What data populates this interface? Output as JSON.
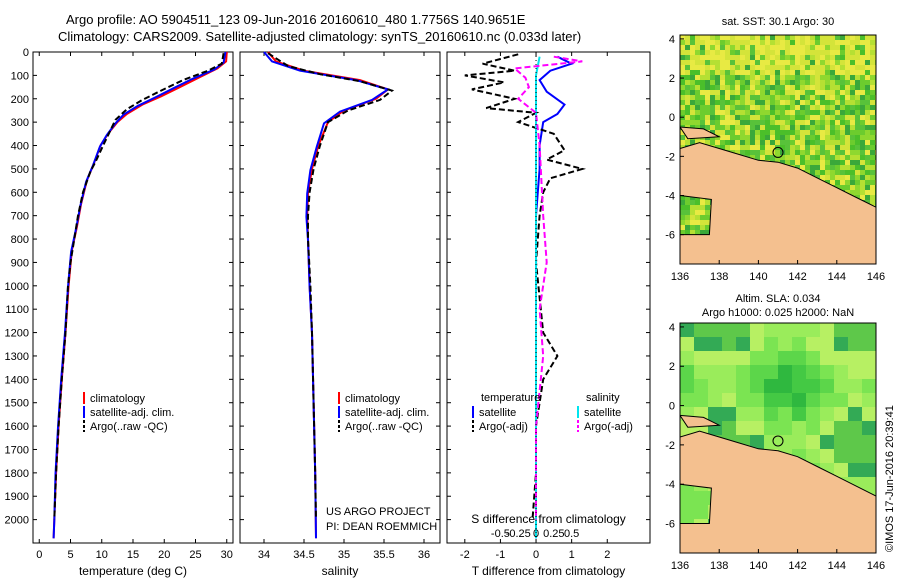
{
  "header": {
    "line1": "Argo profile: AO 5904511_123 09-Jun-2016 20160610_480 1.7756S 140.9651E",
    "line2": "Climatology: CARS2009. Satellite-adjusted climatology: synTS_20160610.nc (0.033d later)"
  },
  "credit": "©IMOS 17-Jun-2016 20:39:41",
  "colors": {
    "climatology": "#ff0000",
    "satellite": "#0000ff",
    "argo": "#000000",
    "sal_satellite": "#00e5ee",
    "sal_argo": "#ff00ff",
    "land": "#f4c08f",
    "sst_ocean": "#66cc33",
    "sla_ocean": "#44d84a"
  },
  "chart_data": [
    {
      "type": "line",
      "id": "temperature",
      "xlabel": "temperature (deg C)",
      "xlim": [
        -1,
        31
      ],
      "ylim": [
        0,
        2100
      ],
      "xticks": [
        0,
        5,
        10,
        15,
        20,
        25,
        30
      ],
      "yticks": [
        0,
        100,
        200,
        300,
        400,
        500,
        600,
        700,
        800,
        900,
        1000,
        1100,
        1200,
        1300,
        1400,
        1500,
        1600,
        1700,
        1800,
        1900,
        2000
      ],
      "legend": [
        "climatology",
        "satellite-adj. clim.",
        "Argo(..raw -QC)"
      ],
      "series": [
        {
          "name": "climatology",
          "style": "solid",
          "color": "#ff0000",
          "points": [
            [
              30.0,
              0
            ],
            [
              29.9,
              40
            ],
            [
              28.5,
              70
            ],
            [
              25.5,
              110
            ],
            [
              22.5,
              150
            ],
            [
              19.5,
              190
            ],
            [
              16.5,
              225
            ],
            [
              14.0,
              265
            ],
            [
              12.5,
              300
            ],
            [
              11.0,
              350
            ],
            [
              9.8,
              400
            ],
            [
              8.7,
              480
            ],
            [
              7.6,
              550
            ],
            [
              6.7,
              650
            ],
            [
              6.0,
              750
            ],
            [
              5.2,
              850
            ],
            [
              4.7,
              1000
            ],
            [
              4.2,
              1200
            ],
            [
              3.6,
              1400
            ],
            [
              3.1,
              1600
            ],
            [
              2.7,
              1800
            ],
            [
              2.4,
              2000
            ],
            [
              2.3,
              2080
            ]
          ]
        },
        {
          "name": "satellite-adj. clim.",
          "style": "solid",
          "color": "#0000ff",
          "points": [
            [
              29.8,
              0
            ],
            [
              29.5,
              45
            ],
            [
              28.0,
              75
            ],
            [
              24.5,
              115
            ],
            [
              21.5,
              155
            ],
            [
              18.5,
              195
            ],
            [
              15.8,
              230
            ],
            [
              13.5,
              268
            ],
            [
              12.2,
              305
            ],
            [
              10.8,
              355
            ],
            [
              9.7,
              405
            ],
            [
              8.6,
              485
            ],
            [
              7.5,
              555
            ],
            [
              6.6,
              655
            ],
            [
              5.9,
              755
            ],
            [
              5.1,
              855
            ],
            [
              4.6,
              1005
            ],
            [
              4.1,
              1205
            ],
            [
              3.5,
              1405
            ],
            [
              3.0,
              1605
            ],
            [
              2.6,
              1805
            ],
            [
              2.4,
              2005
            ],
            [
              2.3,
              2080
            ]
          ]
        },
        {
          "name": "Argo(..raw -QC)",
          "style": "dashed",
          "color": "#000000",
          "points": [
            [
              29.5,
              5
            ],
            [
              29.2,
              50
            ],
            [
              27.0,
              80
            ],
            [
              23.0,
              120
            ],
            [
              19.5,
              165
            ],
            [
              16.5,
              205
            ],
            [
              14.0,
              245
            ],
            [
              12.2,
              290
            ],
            [
              11.2,
              345
            ],
            [
              10.3,
              395
            ],
            [
              9.0,
              470
            ],
            [
              8.2,
              510
            ],
            [
              7.0,
              600
            ],
            [
              6.2,
              700
            ],
            [
              5.6,
              800
            ],
            [
              5.0,
              900
            ],
            [
              4.6,
              1000
            ],
            [
              4.2,
              1200
            ],
            [
              3.6,
              1400
            ],
            [
              3.1,
              1600
            ],
            [
              2.7,
              1800
            ],
            [
              2.4,
              2000
            ]
          ]
        }
      ]
    },
    {
      "type": "line",
      "id": "salinity",
      "xlabel": "salinity",
      "xlim": [
        33.7,
        36.2
      ],
      "ylim": [
        0,
        2100
      ],
      "xticks": [
        34,
        34.5,
        35,
        35.5,
        36
      ],
      "legend": [
        "climatology",
        "satellite-adj. clim.",
        "Argo(..raw -QC)"
      ],
      "annotation": [
        "US ARGO PROJECT",
        "PI: DEAN ROEMMICH"
      ],
      "series": [
        {
          "name": "climatology",
          "style": "solid",
          "color": "#ff0000",
          "points": [
            [
              34.05,
              0
            ],
            [
              34.15,
              40
            ],
            [
              34.5,
              80
            ],
            [
              35.2,
              120
            ],
            [
              35.55,
              160
            ],
            [
              35.4,
              200
            ],
            [
              35.0,
              250
            ],
            [
              34.8,
              300
            ],
            [
              34.68,
              400
            ],
            [
              34.6,
              500
            ],
            [
              34.55,
              600
            ],
            [
              34.54,
              700
            ],
            [
              34.55,
              800
            ],
            [
              34.57,
              1000
            ],
            [
              34.6,
              1200
            ],
            [
              34.62,
              1500
            ],
            [
              34.64,
              1800
            ],
            [
              34.65,
              2080
            ]
          ]
        },
        {
          "name": "satellite-adj. clim.",
          "style": "solid",
          "color": "#0000ff",
          "points": [
            [
              34.0,
              0
            ],
            [
              34.1,
              40
            ],
            [
              34.45,
              80
            ],
            [
              35.15,
              120
            ],
            [
              35.55,
              160
            ],
            [
              35.35,
              205
            ],
            [
              34.95,
              255
            ],
            [
              34.75,
              305
            ],
            [
              34.66,
              405
            ],
            [
              34.58,
              505
            ],
            [
              34.54,
              605
            ],
            [
              34.53,
              705
            ],
            [
              34.55,
              805
            ],
            [
              34.57,
              1005
            ],
            [
              34.6,
              1205
            ],
            [
              34.62,
              1505
            ],
            [
              34.64,
              1805
            ],
            [
              34.65,
              2080
            ]
          ]
        },
        {
          "name": "Argo(..raw -QC)",
          "style": "dashed",
          "color": "#000000",
          "points": [
            [
              34.05,
              5
            ],
            [
              34.3,
              60
            ],
            [
              34.7,
              95
            ],
            [
              35.2,
              125
            ],
            [
              35.6,
              165
            ],
            [
              35.45,
              205
            ],
            [
              35.05,
              250
            ],
            [
              34.8,
              300
            ],
            [
              34.7,
              400
            ],
            [
              34.62,
              500
            ],
            [
              34.57,
              600
            ],
            [
              34.55,
              700
            ],
            [
              34.55,
              800
            ],
            [
              34.58,
              1000
            ],
            [
              34.6,
              1200
            ],
            [
              34.62,
              1500
            ],
            [
              34.64,
              1800
            ],
            [
              34.65,
              2000
            ]
          ]
        }
      ]
    },
    {
      "type": "line",
      "id": "difference",
      "xlabel": "T difference from climatology",
      "xlabel_top": "S difference from climatology",
      "xlim": [
        -2.5,
        3.2
      ],
      "ylim": [
        0,
        2100
      ],
      "xticks": [
        -2,
        -1,
        0,
        1,
        2
      ],
      "xticks_top": [
        -0.5,
        -0.25,
        0,
        0.25,
        0.5
      ],
      "xticks_top_labels": [
        "-0.5",
        "-0.25",
        "0",
        "0.25",
        "0.5"
      ],
      "legend_titles": [
        "temperature",
        "salinity"
      ],
      "legend": [
        "satellite",
        "Argo(-adj)",
        "satellite",
        "Argo(-adj)"
      ],
      "series": [
        {
          "name": "temperature satellite",
          "style": "solid",
          "color": "#0000ff",
          "points": [
            [
              0.6,
              20
            ],
            [
              1.0,
              50
            ],
            [
              0.4,
              80
            ],
            [
              0.1,
              120
            ],
            [
              0.3,
              170
            ],
            [
              0.8,
              225
            ],
            [
              0.6,
              265
            ],
            [
              0.2,
              300
            ],
            [
              0.1,
              400
            ],
            [
              0.1,
              500
            ],
            [
              0.0,
              700
            ],
            [
              0.0,
              1000
            ],
            [
              0.0,
              1500
            ],
            [
              0.0,
              2080
            ]
          ]
        },
        {
          "name": "temperature Argo(-adj)",
          "style": "dashed",
          "color": "#000000",
          "points": [
            [
              -0.5,
              10
            ],
            [
              -1.5,
              50
            ],
            [
              -0.6,
              80
            ],
            [
              -2.0,
              100
            ],
            [
              -0.9,
              130
            ],
            [
              -1.8,
              160
            ],
            [
              -0.6,
              200
            ],
            [
              -1.4,
              240
            ],
            [
              0.0,
              260
            ],
            [
              -0.5,
              300
            ],
            [
              0.5,
              350
            ],
            [
              0.8,
              420
            ],
            [
              0.3,
              460
            ],
            [
              1.3,
              500
            ],
            [
              0.4,
              540
            ],
            [
              0.2,
              600
            ],
            [
              0.1,
              700
            ],
            [
              0.0,
              900
            ],
            [
              0.2,
              1200
            ],
            [
              0.6,
              1300
            ],
            [
              0.2,
              1400
            ],
            [
              0.0,
              1600
            ],
            [
              0.0,
              1800
            ],
            [
              -0.1,
              2000
            ]
          ]
        },
        {
          "name": "salinity satellite",
          "style": "solid",
          "color": "#00e5ee",
          "points": [
            [
              0.1,
              20
            ],
            [
              0.0,
              100
            ],
            [
              0.0,
              300
            ],
            [
              0.0,
              700
            ],
            [
              0.0,
              1200
            ],
            [
              0.0,
              2080
            ]
          ]
        },
        {
          "name": "salinity Argo(-adj)",
          "style": "dashed",
          "color": "#ff00ff",
          "points": [
            [
              0.5,
              20
            ],
            [
              1.3,
              40
            ],
            [
              -0.6,
              70
            ],
            [
              -0.3,
              110
            ],
            [
              -0.2,
              150
            ],
            [
              -0.5,
              200
            ],
            [
              0.0,
              260
            ],
            [
              0.1,
              400
            ],
            [
              0.2,
              700
            ],
            [
              0.3,
              900
            ],
            [
              0.1,
              1100
            ],
            [
              0.2,
              1300
            ],
            [
              0.0,
              1600
            ],
            [
              0.0,
              2000
            ]
          ]
        }
      ]
    },
    {
      "type": "heatmap",
      "id": "sst_map",
      "title": "sat. SST: 30.1  Argo: 30",
      "xlim": [
        136,
        146
      ],
      "ylim": [
        -7.5,
        4.2
      ],
      "xticks": [
        136,
        138,
        140,
        142,
        144,
        146
      ],
      "yticks": [
        4,
        2,
        0,
        -2,
        -4,
        -6
      ],
      "marker": {
        "lon": 141.0,
        "lat": -1.8
      }
    },
    {
      "type": "heatmap",
      "id": "sla_map",
      "title_line1": "Altim. SLA: 0.034",
      "title_line2": "Argo h1000: 0.025 h2000: NaN",
      "xlim": [
        136,
        146
      ],
      "ylim": [
        -7.5,
        4.2
      ],
      "xticks": [
        136,
        138,
        140,
        142,
        144,
        146
      ],
      "yticks": [
        4,
        2,
        0,
        -2,
        -4,
        -6
      ],
      "marker": {
        "lon": 141.0,
        "lat": -1.8
      }
    }
  ]
}
